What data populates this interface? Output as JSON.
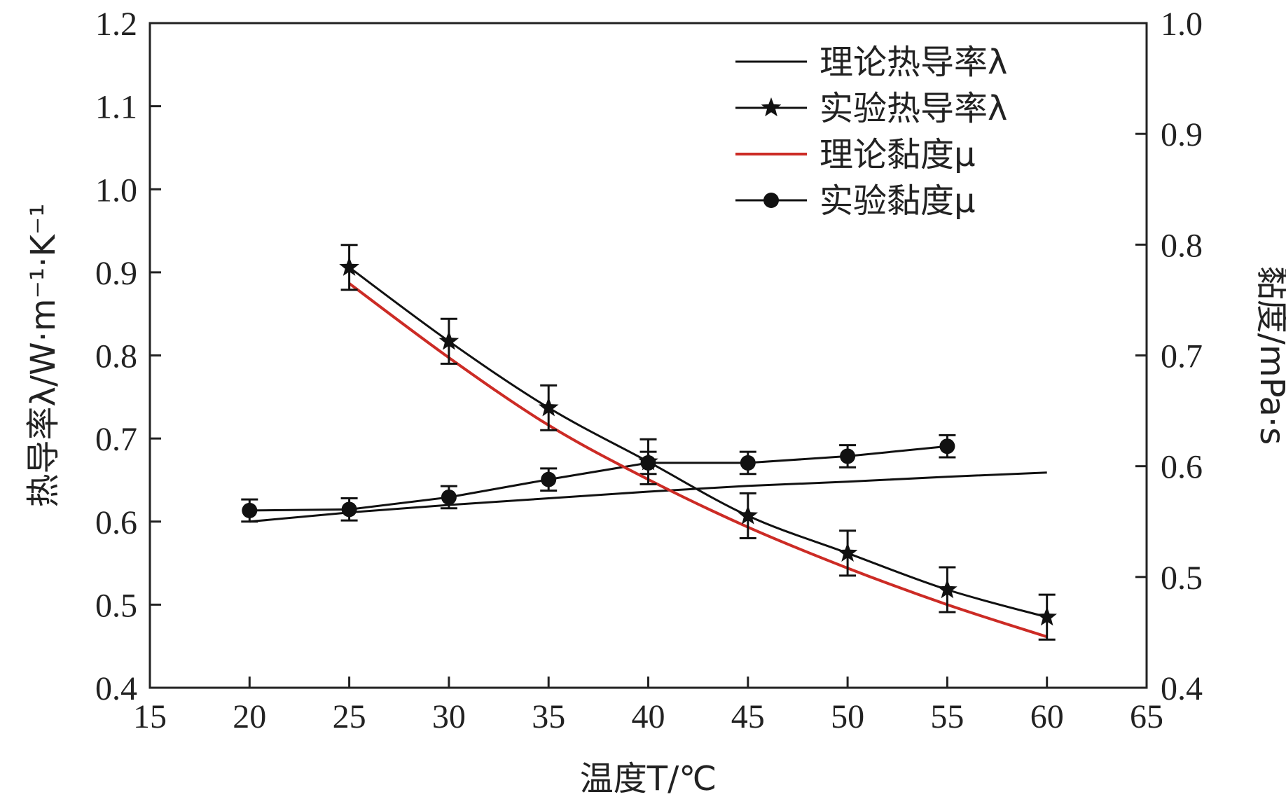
{
  "chart_data": {
    "type": "line",
    "xlabel": "温度T/℃",
    "ylabel_left": "热导率λ/W·m⁻¹·K⁻¹",
    "ylabel_right": "黏度/mPa·s",
    "xlim": [
      15,
      65
    ],
    "ylim_left": [
      0.4,
      1.2
    ],
    "ylim_right": [
      0.4,
      1.0
    ],
    "x_ticks": [
      "15",
      "20",
      "25",
      "30",
      "35",
      "40",
      "45",
      "50",
      "55",
      "60",
      "65"
    ],
    "y_left_ticks": [
      "0.4",
      "0.5",
      "0.6",
      "0.7",
      "0.8",
      "0.9",
      "1.0",
      "1.1",
      "1.2"
    ],
    "y_right_ticks": [
      "0.4",
      "0.5",
      "0.6",
      "0.7",
      "0.8",
      "0.9",
      "1.0"
    ],
    "legend_position": "top-right",
    "grid": false,
    "series": [
      {
        "name": "理论热导率λ",
        "axis": "left",
        "style": "line",
        "color": "#111111",
        "x": [
          20,
          25,
          30,
          35,
          40,
          45,
          50,
          55,
          60
        ],
        "y": [
          0.6,
          0.611,
          0.62,
          0.628,
          0.636,
          0.643,
          0.648,
          0.654,
          0.659
        ]
      },
      {
        "name": "实验热导率λ",
        "axis": "left",
        "style": "line-star",
        "color": "#111111",
        "x": [
          25,
          30,
          35,
          40,
          45,
          50,
          55,
          60
        ],
        "y": [
          0.906,
          0.817,
          0.737,
          0.672,
          0.607,
          0.562,
          0.518,
          0.485
        ],
        "error": [
          0.027,
          0.027,
          0.027,
          0.027,
          0.027,
          0.027,
          0.027,
          0.027
        ]
      },
      {
        "name": "理论黏度μ",
        "axis": "right",
        "style": "line",
        "color": "#cc2b25",
        "x": [
          25,
          30,
          35,
          40,
          45,
          50,
          55,
          60
        ],
        "y": [
          0.765,
          0.698,
          0.637,
          0.588,
          0.545,
          0.508,
          0.475,
          0.446
        ]
      },
      {
        "name": "实验黏度μ",
        "axis": "right",
        "style": "line-circle",
        "color": "#111111",
        "x": [
          20,
          25,
          30,
          35,
          40,
          45,
          50,
          55
        ],
        "y": [
          0.56,
          0.561,
          0.572,
          0.588,
          0.603,
          0.603,
          0.609,
          0.618
        ],
        "error": [
          0.01,
          0.01,
          0.01,
          0.01,
          0.01,
          0.01,
          0.01,
          0.01
        ]
      }
    ]
  }
}
